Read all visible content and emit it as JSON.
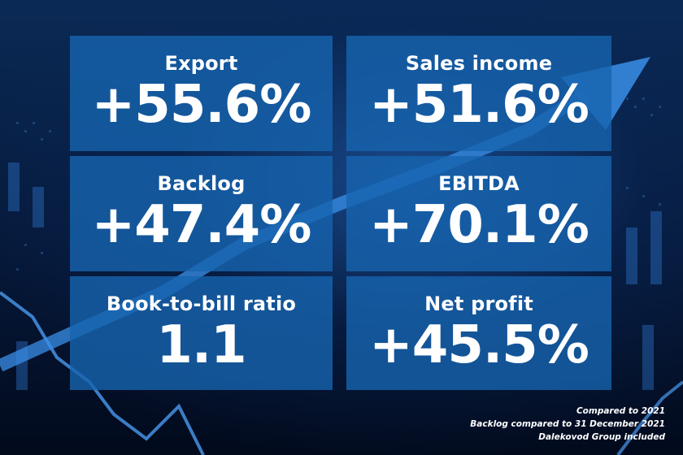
{
  "tiles": [
    {
      "label": "Export",
      "value": "+55.6%"
    },
    {
      "label": "Sales income",
      "value": "+51.6%"
    },
    {
      "label": "Backlog",
      "value": "+47.4%"
    },
    {
      "label": "EBITDA",
      "value": "+70.1%"
    },
    {
      "label": "Book-to-bill ratio",
      "value": "1.1"
    },
    {
      "label": "Net profit",
      "value": "+45.5%"
    }
  ],
  "notes": [
    "Compared to 2021",
    "Backlog compared to 31 December 2021",
    "Dalekovod Group included"
  ],
  "colors": {
    "tile": "#1664af",
    "background": "#041226",
    "text": "#ffffff"
  }
}
